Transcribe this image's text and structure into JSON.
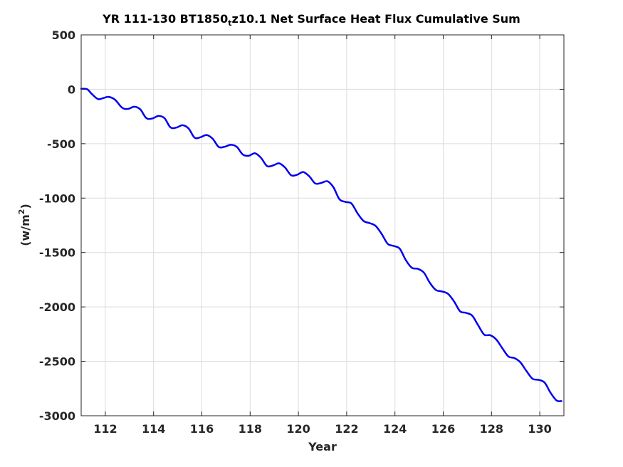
{
  "chart_data": {
    "type": "line",
    "title": {
      "before": "YR 111-130 BT1850",
      "subscript": "t",
      "after": "z10.1 Net Surface Heat Flux  Cumulative Sum"
    },
    "xlabel": "Year",
    "ylabel": {
      "base": "(w/m",
      "superscript": "2",
      "close": ")"
    },
    "xlim": [
      111,
      131
    ],
    "ylim": [
      -3000,
      500
    ],
    "xticks": [
      112,
      114,
      116,
      118,
      120,
      122,
      124,
      126,
      128,
      130
    ],
    "yticks": [
      500,
      0,
      -500,
      -1000,
      -1500,
      -2000,
      -2500,
      -3000
    ],
    "grid": true,
    "line_color": "#0000ee",
    "series": [
      {
        "x": [
          111.0,
          111.25,
          111.45,
          111.7,
          111.95,
          112.15,
          112.4,
          112.7,
          112.95,
          113.2,
          113.45,
          113.7,
          113.95,
          114.2,
          114.45,
          114.7,
          114.95,
          115.2,
          115.45,
          115.7,
          115.95,
          116.2,
          116.45,
          116.7,
          116.95,
          117.2,
          117.45,
          117.7,
          117.95,
          118.2,
          118.45,
          118.7,
          118.95,
          119.2,
          119.45,
          119.7,
          119.95,
          120.2,
          120.45,
          120.7,
          120.95,
          121.2,
          121.45,
          121.7,
          121.95,
          122.2,
          122.45,
          122.7,
          122.95,
          123.2,
          123.45,
          123.7,
          123.95,
          124.2,
          124.45,
          124.7,
          124.95,
          125.2,
          125.45,
          125.7,
          125.95,
          126.2,
          126.45,
          126.7,
          126.95,
          127.2,
          127.45,
          127.7,
          127.95,
          128.2,
          128.45,
          128.7,
          128.95,
          129.2,
          129.45,
          129.7,
          129.95,
          130.2,
          130.45,
          130.7,
          130.9
        ],
        "y": [
          5,
          0,
          -45,
          -90,
          -78,
          -70,
          -95,
          -170,
          -180,
          -160,
          -185,
          -265,
          -268,
          -245,
          -265,
          -350,
          -352,
          -330,
          -360,
          -445,
          -440,
          -420,
          -455,
          -530,
          -528,
          -510,
          -530,
          -600,
          -610,
          -588,
          -630,
          -705,
          -700,
          -680,
          -720,
          -790,
          -785,
          -760,
          -800,
          -865,
          -860,
          -845,
          -900,
          -1010,
          -1035,
          -1050,
          -1140,
          -1210,
          -1230,
          -1255,
          -1330,
          -1420,
          -1440,
          -1465,
          -1570,
          -1640,
          -1650,
          -1685,
          -1780,
          -1845,
          -1858,
          -1880,
          -1950,
          -2040,
          -2055,
          -2080,
          -2170,
          -2255,
          -2260,
          -2300,
          -2380,
          -2455,
          -2470,
          -2510,
          -2590,
          -2660,
          -2670,
          -2695,
          -2790,
          -2860,
          -2865
        ]
      }
    ]
  }
}
